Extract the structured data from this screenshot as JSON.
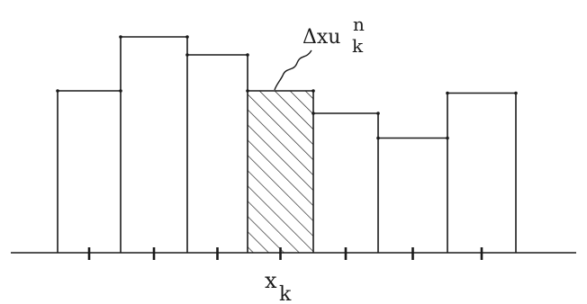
{
  "diagram": {
    "type": "piecewise-constant histogram (finite volume cells)",
    "cells": [
      {
        "index": 1,
        "height": 0.72,
        "shaded": false
      },
      {
        "index": 2,
        "height": 0.96,
        "shaded": false
      },
      {
        "index": 3,
        "height": 0.88,
        "shaded": false
      },
      {
        "index": 4,
        "height": 0.72,
        "shaded": true
      },
      {
        "index": 5,
        "height": 0.62,
        "shaded": false
      },
      {
        "index": 6,
        "height": 0.51,
        "shaded": false
      },
      {
        "index": 7,
        "height": 0.71,
        "shaded": false
      }
    ],
    "shaded_label": {
      "prefix": "Δxu",
      "superscript": "n",
      "subscript": "k"
    },
    "axis_label": {
      "base": "x",
      "subscript": "k"
    },
    "colors": {
      "stroke": "#1a1a1a",
      "hatch": "#1a1a1a",
      "background": "#ffffff"
    }
  }
}
